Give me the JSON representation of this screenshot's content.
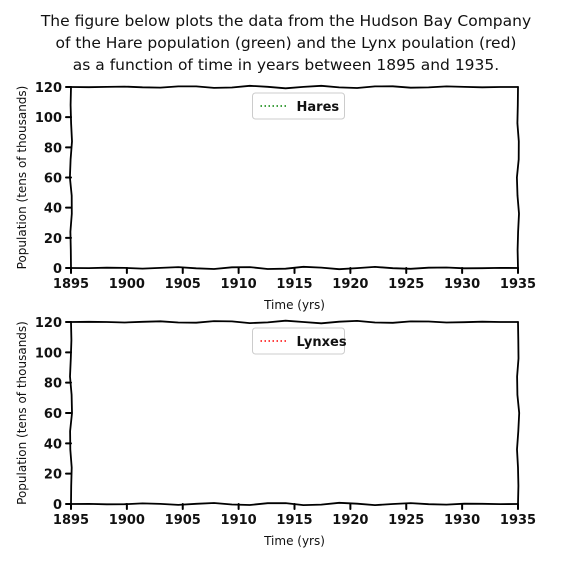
{
  "title_lines": [
    "The figure below plots the data from the Hudson Bay Company",
    "of the Hare population (green) and the Lynx poulation (red)",
    "as a function of time in years between 1895 and 1935."
  ],
  "chart_data": [
    {
      "type": "line",
      "xlabel": "Time (yrs)",
      "ylabel": "Population (tens of thousands)",
      "xlim": [
        1895,
        1935
      ],
      "ylim": [
        0,
        120
      ],
      "x_ticks": [
        1895,
        1900,
        1905,
        1910,
        1915,
        1920,
        1925,
        1930,
        1935
      ],
      "y_ticks": [
        0,
        20,
        40,
        60,
        80,
        100,
        120
      ],
      "grid": false,
      "legend_position": "top-center",
      "series": [
        {
          "name": "Hares",
          "color": "#008000",
          "line_style": "dotted",
          "x": [],
          "y": []
        }
      ]
    },
    {
      "type": "line",
      "xlabel": "Time (yrs)",
      "ylabel": "Population (tens of thousands)",
      "xlim": [
        1895,
        1935
      ],
      "ylim": [
        0,
        120
      ],
      "x_ticks": [
        1895,
        1900,
        1905,
        1910,
        1915,
        1920,
        1925,
        1930,
        1935
      ],
      "y_ticks": [
        0,
        20,
        40,
        60,
        80,
        100,
        120
      ],
      "grid": false,
      "legend_position": "top-center",
      "series": [
        {
          "name": "Lynxes",
          "color": "#ff0000",
          "line_style": "dotted",
          "x": [],
          "y": []
        }
      ]
    }
  ]
}
